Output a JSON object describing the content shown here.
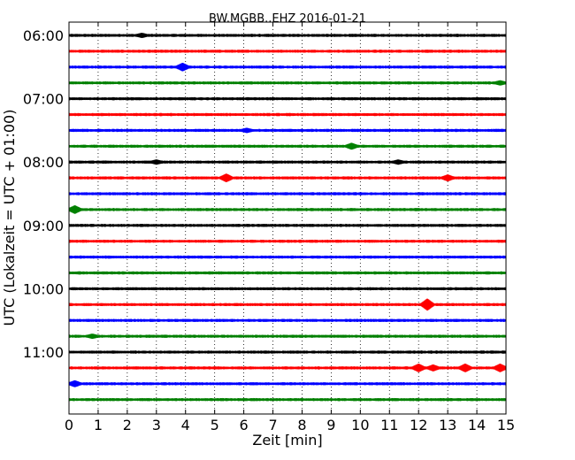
{
  "chart_data": {
    "type": "line",
    "title": "BW.MGBB..EHZ 2016-01-21",
    "xlabel": "Zeit  [min]",
    "ylabel": "UTC (Lokalzeit = UTC + 01:00)",
    "xlim": [
      0,
      15
    ],
    "x_ticks": [
      0,
      1,
      2,
      3,
      4,
      5,
      6,
      7,
      8,
      9,
      10,
      11,
      12,
      13,
      14,
      15
    ],
    "y_tick_labels": [
      "06:00",
      "07:00",
      "08:00",
      "09:00",
      "10:00",
      "11:00"
    ],
    "trace_interval_minutes": 15,
    "trace_start": "06:00",
    "trace_colors": [
      "#000000",
      "#ff0000",
      "#0000ff",
      "#008000"
    ],
    "grid": "vertical-dotted",
    "series": [
      {
        "start": "06:00",
        "color": "#000000"
      },
      {
        "start": "06:15",
        "color": "#ff0000"
      },
      {
        "start": "06:30",
        "color": "#0000ff"
      },
      {
        "start": "06:45",
        "color": "#008000"
      },
      {
        "start": "07:00",
        "color": "#000000"
      },
      {
        "start": "07:15",
        "color": "#ff0000"
      },
      {
        "start": "07:30",
        "color": "#0000ff"
      },
      {
        "start": "07:45",
        "color": "#008000"
      },
      {
        "start": "08:00",
        "color": "#000000"
      },
      {
        "start": "08:15",
        "color": "#ff0000"
      },
      {
        "start": "08:30",
        "color": "#0000ff"
      },
      {
        "start": "08:45",
        "color": "#008000"
      },
      {
        "start": "09:00",
        "color": "#000000"
      },
      {
        "start": "09:15",
        "color": "#ff0000"
      },
      {
        "start": "09:30",
        "color": "#0000ff"
      },
      {
        "start": "09:45",
        "color": "#008000"
      },
      {
        "start": "10:00",
        "color": "#000000"
      },
      {
        "start": "10:15",
        "color": "#ff0000"
      },
      {
        "start": "10:30",
        "color": "#0000ff"
      },
      {
        "start": "10:45",
        "color": "#008000"
      },
      {
        "start": "11:00",
        "color": "#000000"
      },
      {
        "start": "11:15",
        "color": "#ff0000"
      },
      {
        "start": "11:30",
        "color": "#0000ff"
      },
      {
        "start": "11:45",
        "color": "#008000"
      }
    ],
    "events": [
      {
        "trace": "11:15",
        "minute": 12.0,
        "amplitude": 4
      },
      {
        "trace": "11:15",
        "minute": 12.5,
        "amplitude": 3
      },
      {
        "trace": "11:15",
        "minute": 13.6,
        "amplitude": 4
      },
      {
        "trace": "11:15",
        "minute": 14.8,
        "amplitude": 4
      },
      {
        "trace": "10:15",
        "minute": 12.3,
        "amplitude": 6
      },
      {
        "trace": "08:15",
        "minute": 5.4,
        "amplitude": 4
      },
      {
        "trace": "08:15",
        "minute": 13.0,
        "amplitude": 3
      },
      {
        "trace": "06:30",
        "minute": 3.9,
        "amplitude": 4
      },
      {
        "trace": "08:45",
        "minute": 0.2,
        "amplitude": 4
      },
      {
        "trace": "11:30",
        "minute": 0.2,
        "amplitude": 3
      },
      {
        "trace": "07:45",
        "minute": 9.7,
        "amplitude": 3
      },
      {
        "trace": "07:30",
        "minute": 6.1,
        "amplitude": 2
      },
      {
        "trace": "08:00",
        "minute": 3.0,
        "amplitude": 2
      },
      {
        "trace": "08:00",
        "minute": 11.3,
        "amplitude": 2
      },
      {
        "trace": "06:00",
        "minute": 2.5,
        "amplitude": 2
      },
      {
        "trace": "06:45",
        "minute": 14.8,
        "amplitude": 2
      },
      {
        "trace": "10:45",
        "minute": 0.8,
        "amplitude": 2
      }
    ]
  }
}
